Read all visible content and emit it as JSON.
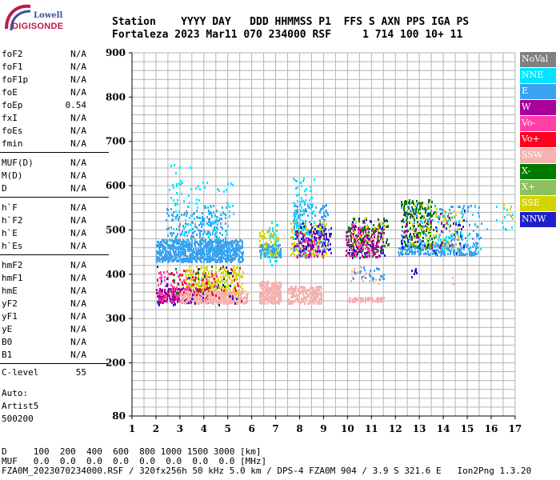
{
  "logo": {
    "brand": "Lowell",
    "name": "DIGISONDE"
  },
  "header": {
    "line1": "Station    YYYY DAY   DDD HHMMSS P1  FFS S AXN PPS IGA PS",
    "line2": "Fortaleza 2023 Mar11 070 234000 RSF     1 714 100 10+ 11"
  },
  "params": {
    "group1": [
      {
        "name": "foF2",
        "value": "N/A"
      },
      {
        "name": "foF1",
        "value": "N/A"
      },
      {
        "name": "foF1p",
        "value": "N/A"
      },
      {
        "name": "foE",
        "value": "N/A"
      },
      {
        "name": "foEp",
        "value": "0.54"
      },
      {
        "name": "fxI",
        "value": "N/A"
      },
      {
        "name": "foEs",
        "value": "N/A"
      },
      {
        "name": "fmin",
        "value": "N/A"
      }
    ],
    "group2": [
      {
        "name": "MUF(D)",
        "value": "N/A"
      },
      {
        "name": "M(D)",
        "value": "N/A"
      },
      {
        "name": "D",
        "value": "N/A"
      }
    ],
    "group3": [
      {
        "name": "h`F",
        "value": "N/A"
      },
      {
        "name": "h`F2",
        "value": "N/A"
      },
      {
        "name": "h`E",
        "value": "N/A"
      },
      {
        "name": "h`Es",
        "value": "N/A"
      }
    ],
    "group4": [
      {
        "name": "hmF2",
        "value": "N/A"
      },
      {
        "name": "hmF1",
        "value": "N/A"
      },
      {
        "name": "hmE",
        "value": "N/A"
      },
      {
        "name": "yF2",
        "value": "N/A"
      },
      {
        "name": "yF1",
        "value": "N/A"
      },
      {
        "name": "yE",
        "value": "N/A"
      },
      {
        "name": "B0",
        "value": "N/A"
      },
      {
        "name": "B1",
        "value": "N/A"
      }
    ],
    "clevel": {
      "name": "C-level",
      "value": "55"
    }
  },
  "auto": {
    "l1": "Auto:",
    "l2": "Artist5",
    "l3": "500200"
  },
  "legend": [
    {
      "label": "NoVal",
      "color": "#808080"
    },
    {
      "label": "NNE",
      "color": "#00e5ff"
    },
    {
      "label": "E",
      "color": "#3aa3f0"
    },
    {
      "label": "W",
      "color": "#a8009a"
    },
    {
      "label": "Vo-",
      "color": "#ff3fa8"
    },
    {
      "label": "Vo+",
      "color": "#ff0020"
    },
    {
      "label": "SSW",
      "color": "#f4b2b0"
    },
    {
      "label": "X-",
      "color": "#007800"
    },
    {
      "label": "X+",
      "color": "#8cc060"
    },
    {
      "label": "SSE",
      "color": "#d4d400"
    },
    {
      "label": "NNW",
      "color": "#2020c8"
    }
  ],
  "chart_data": {
    "type": "scatter",
    "xlim": [
      1,
      17
    ],
    "ylim": [
      80,
      900
    ],
    "xticks": [
      1,
      2,
      3,
      4,
      5,
      6,
      7,
      8,
      9,
      10,
      11,
      12,
      13,
      14,
      15,
      16,
      17
    ],
    "yticks": [
      80,
      200,
      300,
      400,
      500,
      600,
      700,
      800,
      900
    ],
    "grid": true,
    "clusters": [
      {
        "series": "E",
        "x": [
          2.0,
          5.6
        ],
        "y": [
          430,
          480
        ],
        "n": 900
      },
      {
        "series": "E",
        "x": [
          2.4,
          4.9
        ],
        "y": [
          480,
          560
        ],
        "n": 160
      },
      {
        "series": "NNE",
        "x": [
          2.5,
          5.2
        ],
        "y": [
          470,
          610
        ],
        "n": 90
      },
      {
        "series": "SSE",
        "x": [
          3.2,
          5.6
        ],
        "y": [
          350,
          420
        ],
        "n": 300
      },
      {
        "series": "W",
        "x": [
          2.0,
          4.2
        ],
        "y": [
          338,
          370
        ],
        "n": 260
      },
      {
        "series": "Vo-",
        "x": [
          2.0,
          4.5
        ],
        "y": [
          340,
          410
        ],
        "n": 140
      },
      {
        "series": "SSW",
        "x": [
          3.0,
          5.8
        ],
        "y": [
          336,
          365
        ],
        "n": 420
      },
      {
        "series": "Vo+",
        "x": [
          2.0,
          5.6
        ],
        "y": [
          340,
          420
        ],
        "n": 50
      },
      {
        "series": "NNW",
        "x": [
          2.0,
          5.5
        ],
        "y": [
          330,
          420
        ],
        "n": 30
      },
      {
        "series": "X-",
        "x": [
          2.5,
          5.0
        ],
        "y": [
          360,
          420
        ],
        "n": 25
      },
      {
        "series": "NNE",
        "x": [
          2.6,
          3.7
        ],
        "y": [
          560,
          650
        ],
        "n": 12
      },
      {
        "series": "SSW",
        "x": [
          6.3,
          7.2
        ],
        "y": [
          336,
          385
        ],
        "n": 260
      },
      {
        "series": "SSW",
        "x": [
          7.5,
          8.9
        ],
        "y": [
          336,
          375
        ],
        "n": 220
      },
      {
        "series": "E",
        "x": [
          6.3,
          7.2
        ],
        "y": [
          440,
          470
        ],
        "n": 120
      },
      {
        "series": "NNE",
        "x": [
          6.6,
          7.1
        ],
        "y": [
          420,
          520
        ],
        "n": 35
      },
      {
        "series": "SSE",
        "x": [
          6.3,
          7.1
        ],
        "y": [
          440,
          500
        ],
        "n": 50
      },
      {
        "series": "SSE",
        "x": [
          7.6,
          9.1
        ],
        "y": [
          440,
          520
        ],
        "n": 150
      },
      {
        "series": "E",
        "x": [
          7.7,
          9.2
        ],
        "y": [
          440,
          560
        ],
        "n": 160
      },
      {
        "series": "NNE",
        "x": [
          7.7,
          8.6
        ],
        "y": [
          480,
          620
        ],
        "n": 80
      },
      {
        "series": "W",
        "x": [
          7.7,
          9.3
        ],
        "y": [
          440,
          500
        ],
        "n": 70
      },
      {
        "series": "NNW",
        "x": [
          7.8,
          9.3
        ],
        "y": [
          450,
          520
        ],
        "n": 70
      },
      {
        "series": "Vo-",
        "x": [
          7.8,
          9.0
        ],
        "y": [
          440,
          500
        ],
        "n": 30
      },
      {
        "series": "SSW",
        "x": [
          10.0,
          11.5
        ],
        "y": [
          340,
          350
        ],
        "n": 70
      },
      {
        "series": "SSW",
        "x": [
          10.1,
          11.3
        ],
        "y": [
          380,
          420
        ],
        "n": 30
      },
      {
        "series": "W",
        "x": [
          9.9,
          11.5
        ],
        "y": [
          440,
          510
        ],
        "n": 180
      },
      {
        "series": "Vo-",
        "x": [
          10.0,
          11.3
        ],
        "y": [
          440,
          520
        ],
        "n": 80
      },
      {
        "series": "X-",
        "x": [
          10.0,
          11.7
        ],
        "y": [
          440,
          530
        ],
        "n": 90
      },
      {
        "series": "NNW",
        "x": [
          10.0,
          11.6
        ],
        "y": [
          440,
          530
        ],
        "n": 40
      },
      {
        "series": "SSE",
        "x": [
          10.1,
          11.5
        ],
        "y": [
          460,
          530
        ],
        "n": 30
      },
      {
        "series": "E",
        "x": [
          10.2,
          11.5
        ],
        "y": [
          390,
          420
        ],
        "n": 25
      },
      {
        "series": "E",
        "x": [
          12.1,
          15.4
        ],
        "y": [
          445,
          470
        ],
        "n": 260
      },
      {
        "series": "E",
        "x": [
          12.2,
          15.6
        ],
        "y": [
          470,
          560
        ],
        "n": 140
      },
      {
        "series": "X-",
        "x": [
          12.2,
          13.6
        ],
        "y": [
          460,
          570
        ],
        "n": 170
      },
      {
        "series": "SSE",
        "x": [
          12.6,
          14.8
        ],
        "y": [
          460,
          560
        ],
        "n": 80
      },
      {
        "series": "NNW",
        "x": [
          12.2,
          15.0
        ],
        "y": [
          450,
          550
        ],
        "n": 40
      },
      {
        "series": "W",
        "x": [
          12.3,
          14.6
        ],
        "y": [
          460,
          540
        ],
        "n": 35
      },
      {
        "series": "X+",
        "x": [
          13.9,
          14.6
        ],
        "y": [
          450,
          540
        ],
        "n": 25
      },
      {
        "series": "NNE",
        "x": [
          13.0,
          15.8
        ],
        "y": [
          450,
          560
        ],
        "n": 50
      },
      {
        "series": "NNW",
        "x": [
          12.4,
          12.9
        ],
        "y": [
          395,
          420
        ],
        "n": 8
      },
      {
        "series": "SSW",
        "x": [
          14.2,
          14.4
        ],
        "y": [
          380,
          395
        ],
        "n": 3
      },
      {
        "series": "NNE",
        "x": [
          16.1,
          16.9
        ],
        "y": [
          500,
          560
        ],
        "n": 12
      },
      {
        "series": "SSE",
        "x": [
          16.4,
          16.9
        ],
        "y": [
          520,
          560
        ],
        "n": 6
      }
    ]
  },
  "footer": {
    "d_row": "D     100  200  400  600  800 1000 1500 3000 [km]",
    "muf_row": "MUF   0.0  0.0  0.0  0.0  0.0  0.0  0.0  0.0 [MHz]",
    "file_row": "FZA0M_2023070234000.RSF / 320fx256h 50 kHz 5.0 km / DPS-4 FZA0M 904 / 3.9 S 321.6 E   Ion2Png 1.3.20"
  }
}
